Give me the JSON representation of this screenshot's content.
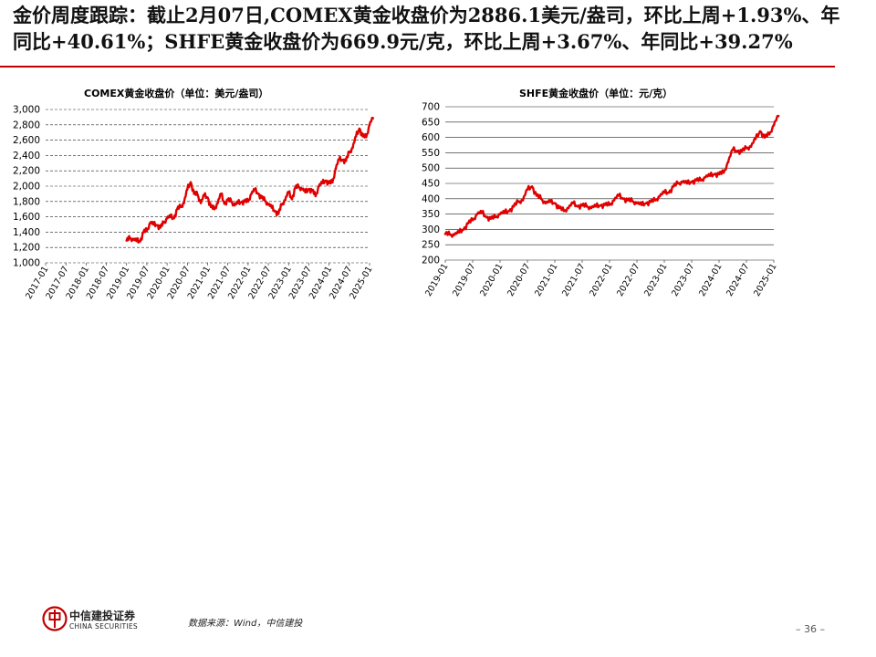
{
  "headline": "金价周度跟踪：截止2月07日,COMEX黄金收盘价为2886.1美元/盎司，环比上周+1.93%、年同比+40.61%；SHFE黄金收盘价为669.9元/克，环比上周+3.67%、年同比+39.27%",
  "footer": {
    "logo_cn": "中信建投证券",
    "logo_en": "CHINA SECURITIES",
    "source": "数据来源：Wind，中信建投",
    "page_number": "– 36 –"
  },
  "colors": {
    "accent": "#c00000",
    "line": "#e00000",
    "grid": "#000000"
  },
  "chart_data": [
    {
      "type": "line",
      "title": "COMEX黄金收盘价（单位：美元/盎司）",
      "ylim": [
        1000,
        3000
      ],
      "yticks": [
        "1,000",
        "1,200",
        "1,400",
        "1,600",
        "1,800",
        "2,000",
        "2,200",
        "2,400",
        "2,600",
        "2,800",
        "3,000"
      ],
      "xticks": [
        "2017-01",
        "2017-07",
        "2018-01",
        "2018-07",
        "2019-01",
        "2019-07",
        "2020-01",
        "2020-07",
        "2021-01",
        "2021-07",
        "2022-01",
        "2022-07",
        "2023-01",
        "2023-07",
        "2024-01",
        "2024-07",
        "2025-01"
      ],
      "grid": "horizontal dashed",
      "series": [
        {
          "x": [
            "2019-01",
            "2019-02",
            "2019-03",
            "2019-04",
            "2019-05",
            "2019-06",
            "2019-07",
            "2019-08",
            "2019-09",
            "2019-10",
            "2019-11",
            "2019-12",
            "2020-01",
            "2020-02",
            "2020-03",
            "2020-04",
            "2020-05",
            "2020-06",
            "2020-07",
            "2020-08",
            "2020-09",
            "2020-10",
            "2020-11",
            "2020-12",
            "2021-01",
            "2021-02",
            "2021-03",
            "2021-04",
            "2021-05",
            "2021-06",
            "2021-07",
            "2021-08",
            "2021-09",
            "2021-10",
            "2021-11",
            "2021-12",
            "2022-01",
            "2022-02",
            "2022-03",
            "2022-04",
            "2022-05",
            "2022-06",
            "2022-07",
            "2022-08",
            "2022-09",
            "2022-10",
            "2022-11",
            "2022-12",
            "2023-01",
            "2023-02",
            "2023-03",
            "2023-04",
            "2023-05",
            "2023-06",
            "2023-07",
            "2023-08",
            "2023-09",
            "2023-10",
            "2023-11",
            "2023-12",
            "2024-01",
            "2024-02",
            "2024-03",
            "2024-04",
            "2024-05",
            "2024-06",
            "2024-07",
            "2024-08",
            "2024-09",
            "2024-10",
            "2024-11",
            "2024-12",
            "2025-01",
            "2025-02"
          ],
          "y": [
            1290,
            1320,
            1300,
            1285,
            1280,
            1400,
            1420,
            1520,
            1500,
            1490,
            1460,
            1520,
            1580,
            1600,
            1580,
            1700,
            1730,
            1780,
            1960,
            2050,
            1900,
            1890,
            1780,
            1880,
            1850,
            1730,
            1700,
            1780,
            1900,
            1770,
            1820,
            1800,
            1750,
            1780,
            1790,
            1800,
            1800,
            1900,
            1950,
            1900,
            1850,
            1810,
            1760,
            1720,
            1670,
            1640,
            1760,
            1820,
            1920,
            1830,
            1980,
            1990,
            1960,
            1920,
            1960,
            1940,
            1870,
            2000,
            2040,
            2070,
            2040,
            2050,
            2230,
            2350,
            2340,
            2330,
            2440,
            2500,
            2650,
            2750,
            2650,
            2640,
            2800,
            2886
          ]
        }
      ]
    },
    {
      "type": "line",
      "title": "SHFE黄金收盘价（单位：元/克）",
      "ylim": [
        200,
        700
      ],
      "yticks": [
        "200",
        "250",
        "300",
        "350",
        "400",
        "450",
        "500",
        "550",
        "600",
        "650",
        "700"
      ],
      "xticks": [
        "2019-01",
        "2019-07",
        "2020-01",
        "2020-07",
        "2021-01",
        "2021-07",
        "2022-01",
        "2022-07",
        "2023-01",
        "2023-07",
        "2024-01",
        "2024-07",
        "2025-01"
      ],
      "grid": "horizontal",
      "series": [
        {
          "x": [
            "2019-01",
            "2019-02",
            "2019-03",
            "2019-04",
            "2019-05",
            "2019-06",
            "2019-07",
            "2019-08",
            "2019-09",
            "2019-10",
            "2019-11",
            "2019-12",
            "2020-01",
            "2020-02",
            "2020-03",
            "2020-04",
            "2020-05",
            "2020-06",
            "2020-07",
            "2020-08",
            "2020-09",
            "2020-10",
            "2020-11",
            "2020-12",
            "2021-01",
            "2021-02",
            "2021-03",
            "2021-04",
            "2021-05",
            "2021-06",
            "2021-07",
            "2021-08",
            "2021-09",
            "2021-10",
            "2021-11",
            "2021-12",
            "2022-01",
            "2022-02",
            "2022-03",
            "2022-04",
            "2022-05",
            "2022-06",
            "2022-07",
            "2022-08",
            "2022-09",
            "2022-10",
            "2022-11",
            "2022-12",
            "2023-01",
            "2023-02",
            "2023-03",
            "2023-04",
            "2023-05",
            "2023-06",
            "2023-07",
            "2023-08",
            "2023-09",
            "2023-10",
            "2023-11",
            "2023-12",
            "2024-01",
            "2024-02",
            "2024-03",
            "2024-04",
            "2024-05",
            "2024-06",
            "2024-07",
            "2024-08",
            "2024-09",
            "2024-10",
            "2024-11",
            "2024-12",
            "2025-01",
            "2025-02"
          ],
          "y": [
            285,
            283,
            282,
            290,
            300,
            320,
            330,
            350,
            355,
            340,
            335,
            340,
            350,
            355,
            360,
            375,
            390,
            395,
            430,
            440,
            410,
            400,
            385,
            390,
            385,
            370,
            360,
            370,
            385,
            375,
            378,
            375,
            370,
            375,
            378,
            380,
            380,
            395,
            410,
            400,
            395,
            392,
            385,
            380,
            385,
            390,
            395,
            408,
            420,
            420,
            440,
            450,
            455,
            450,
            455,
            460,
            460,
            470,
            475,
            480,
            480,
            485,
            520,
            560,
            555,
            555,
            565,
            570,
            595,
            620,
            600,
            610,
            640,
            670
          ]
        }
      ]
    }
  ]
}
